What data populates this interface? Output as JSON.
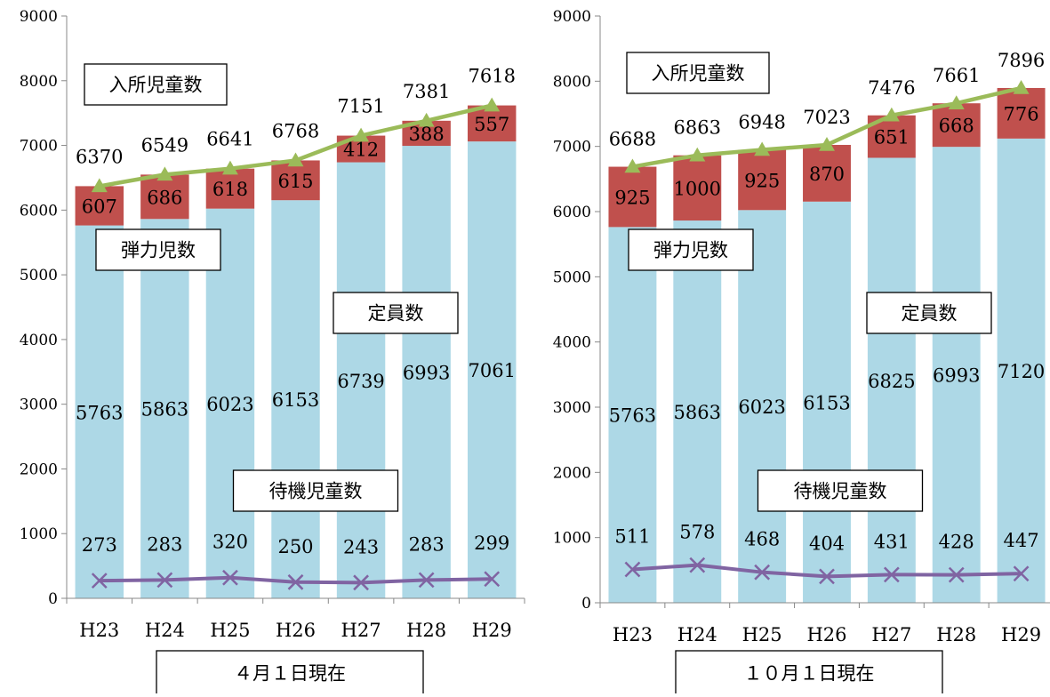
{
  "colors": {
    "capacity": "#add8e6",
    "elastic": "#c0504d",
    "enrolled_line": "#9bbb59",
    "waiting_line": "#8064a2"
  },
  "chart_data": [
    {
      "type": "bar",
      "stacked": true,
      "categories": [
        "H23",
        "H24",
        "H25",
        "H26",
        "H27",
        "H28",
        "H29"
      ],
      "ylim": [
        0,
        9000
      ],
      "yticks": [
        0,
        1000,
        2000,
        3000,
        4000,
        5000,
        6000,
        7000,
        8000,
        9000
      ],
      "grid": false,
      "series": [
        {
          "name": "定員数",
          "kind": "bar",
          "values": [
            5763,
            5863,
            6023,
            6153,
            6739,
            6993,
            7061
          ]
        },
        {
          "name": "弾力児数",
          "kind": "bar",
          "values": [
            607,
            686,
            618,
            615,
            412,
            388,
            557
          ]
        },
        {
          "name": "入所児童数",
          "kind": "line",
          "marker": "triangle",
          "values": [
            6370,
            6549,
            6641,
            6768,
            7151,
            7381,
            7618
          ]
        },
        {
          "name": "待機児童数",
          "kind": "line",
          "marker": "x",
          "values": [
            273,
            283,
            320,
            250,
            243,
            283,
            299
          ]
        }
      ],
      "annotations": [
        "入所児童数",
        "弾力児数",
        "定員数",
        "待機児童数"
      ],
      "caption": "４月１日現在"
    },
    {
      "type": "bar",
      "stacked": true,
      "categories": [
        "H23",
        "H24",
        "H25",
        "H26",
        "H27",
        "H28",
        "H29"
      ],
      "ylim": [
        0,
        9000
      ],
      "yticks": [
        0,
        1000,
        2000,
        3000,
        4000,
        5000,
        6000,
        7000,
        8000,
        9000
      ],
      "grid": false,
      "series": [
        {
          "name": "定員数",
          "kind": "bar",
          "values": [
            5763,
            5863,
            6023,
            6153,
            6825,
            6993,
            7120
          ]
        },
        {
          "name": "弾力児数",
          "kind": "bar",
          "values": [
            925,
            1000,
            925,
            870,
            651,
            668,
            776
          ]
        },
        {
          "name": "入所児童数",
          "kind": "line",
          "marker": "triangle",
          "values": [
            6688,
            6863,
            6948,
            7023,
            7476,
            7661,
            7896
          ]
        },
        {
          "name": "待機児童数",
          "kind": "line",
          "marker": "x",
          "values": [
            511,
            578,
            468,
            404,
            431,
            428,
            447
          ]
        }
      ],
      "annotations": [
        "入所児童数",
        "弾力児数",
        "定員数",
        "待機児童数"
      ],
      "caption": "１０月１日現在"
    }
  ]
}
